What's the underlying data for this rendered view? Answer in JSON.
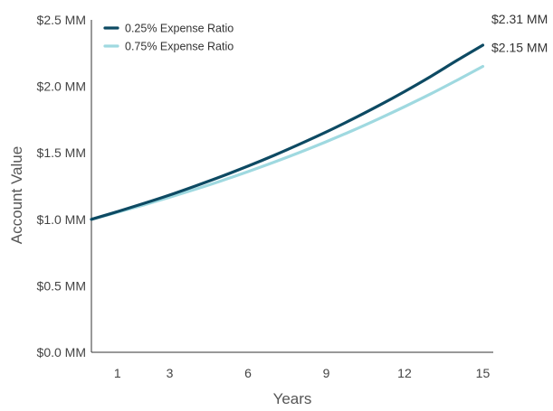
{
  "chart_data": {
    "type": "line",
    "xlabel": "Years",
    "ylabel": "Account Value",
    "xlim": [
      0,
      15.4
    ],
    "ylim": [
      0,
      2.5
    ],
    "x_ticks": [
      1,
      3,
      6,
      9,
      12,
      15
    ],
    "x_tick_labels": [
      "1",
      "3",
      "6",
      "9",
      "12",
      "15"
    ],
    "y_ticks": [
      0,
      0.5,
      1.0,
      1.5,
      2.0,
      2.5
    ],
    "y_tick_labels": [
      "$0.0 MM",
      "$0.5 MM",
      "$1.0 MM",
      "$1.5 MM",
      "$2.0 MM",
      "$2.5 MM"
    ],
    "grid": false,
    "legend_position": "top-left",
    "series": [
      {
        "name": "0.25% Expense Ratio",
        "color": "#0d4a63",
        "x": [
          0,
          1,
          2,
          3,
          4,
          5,
          6,
          7,
          8,
          9,
          10,
          11,
          12,
          13,
          14,
          15
        ],
        "values": [
          1.0,
          1.058,
          1.119,
          1.183,
          1.252,
          1.324,
          1.4,
          1.481,
          1.567,
          1.657,
          1.753,
          1.854,
          1.961,
          2.074,
          2.194,
          2.31
        ],
        "end_label": "$2.31 MM"
      },
      {
        "name": "0.75% Expense Ratio",
        "color": "#9fd9e0",
        "x": [
          0,
          1,
          2,
          3,
          4,
          5,
          6,
          7,
          8,
          9,
          10,
          11,
          12,
          13,
          14,
          15
        ],
        "values": [
          1.0,
          1.053,
          1.108,
          1.166,
          1.227,
          1.291,
          1.359,
          1.43,
          1.505,
          1.584,
          1.667,
          1.755,
          1.847,
          1.943,
          2.045,
          2.15
        ],
        "end_label": "$2.15 MM"
      }
    ]
  }
}
